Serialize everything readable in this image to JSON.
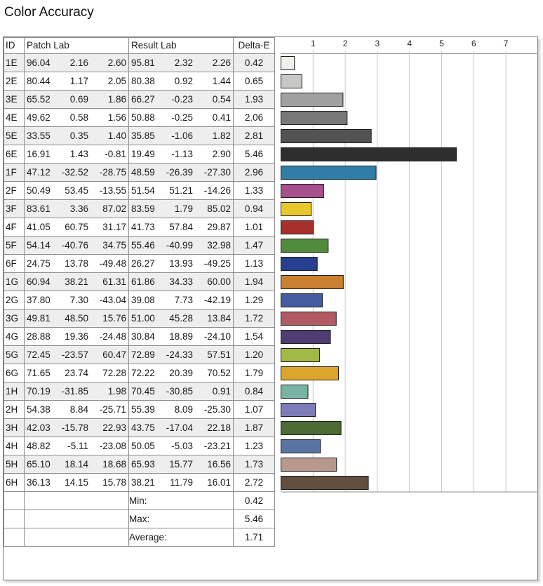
{
  "title": "Color Accuracy",
  "headers": {
    "id": "ID",
    "patch": "Patch Lab",
    "result": "Result Lab",
    "de": "Delta-E"
  },
  "rows": [
    {
      "id": "1E",
      "patch": [
        "96.04",
        "2.16",
        "2.60"
      ],
      "result": [
        "95.81",
        "2.32",
        "2.26"
      ],
      "de": "0.42",
      "color": "#f3f0eb"
    },
    {
      "id": "2E",
      "patch": [
        "80.44",
        "1.17",
        "2.05"
      ],
      "result": [
        "80.38",
        "0.92",
        "1.44"
      ],
      "de": "0.65",
      "color": "#c8c8c6"
    },
    {
      "id": "3E",
      "patch": [
        "65.52",
        "0.69",
        "1.86"
      ],
      "result": [
        "66.27",
        "-0.23",
        "0.54"
      ],
      "de": "1.93",
      "color": "#a0a0a0"
    },
    {
      "id": "4E",
      "patch": [
        "49.62",
        "0.58",
        "1.56"
      ],
      "result": [
        "50.88",
        "-0.25",
        "0.41"
      ],
      "de": "2.06",
      "color": "#787878"
    },
    {
      "id": "5E",
      "patch": [
        "33.55",
        "0.35",
        "1.40"
      ],
      "result": [
        "35.85",
        "-1.06",
        "1.82"
      ],
      "de": "2.81",
      "color": "#535353"
    },
    {
      "id": "6E",
      "patch": [
        "16.91",
        "1.43",
        "-0.81"
      ],
      "result": [
        "19.49",
        "-1.13",
        "2.90"
      ],
      "de": "5.46",
      "color": "#2e2e2e"
    },
    {
      "id": "1F",
      "patch": [
        "47.12",
        "-32.52",
        "-28.75"
      ],
      "result": [
        "48.59",
        "-26.39",
        "-27.30"
      ],
      "de": "2.96",
      "color": "#2f7ea8"
    },
    {
      "id": "2F",
      "patch": [
        "50.49",
        "53.45",
        "-13.55"
      ],
      "result": [
        "51.54",
        "51.21",
        "-14.26"
      ],
      "de": "1.33",
      "color": "#a84f8e"
    },
    {
      "id": "3F",
      "patch": [
        "83.61",
        "3.36",
        "87.02"
      ],
      "result": [
        "83.59",
        "1.79",
        "85.02"
      ],
      "de": "0.94",
      "color": "#e6c82c"
    },
    {
      "id": "4F",
      "patch": [
        "41.05",
        "60.75",
        "31.17"
      ],
      "result": [
        "41.73",
        "57.84",
        "29.87"
      ],
      "de": "1.01",
      "color": "#a8302c"
    },
    {
      "id": "5F",
      "patch": [
        "54.14",
        "-40.76",
        "34.75"
      ],
      "result": [
        "55.46",
        "-40.99",
        "32.98"
      ],
      "de": "1.47",
      "color": "#4f8c3c"
    },
    {
      "id": "6F",
      "patch": [
        "24.75",
        "13.78",
        "-49.48"
      ],
      "result": [
        "26.27",
        "13.93",
        "-49.25"
      ],
      "de": "1.13",
      "color": "#263f8e"
    },
    {
      "id": "1G",
      "patch": [
        "60.94",
        "38.21",
        "61.31"
      ],
      "result": [
        "61.86",
        "34.33",
        "60.00"
      ],
      "de": "1.94",
      "color": "#c98030"
    },
    {
      "id": "2G",
      "patch": [
        "37.80",
        "7.30",
        "-43.04"
      ],
      "result": [
        "39.08",
        "7.73",
        "-42.19"
      ],
      "de": "1.29",
      "color": "#445ca0"
    },
    {
      "id": "3G",
      "patch": [
        "49.81",
        "48.50",
        "15.76"
      ],
      "result": [
        "51.00",
        "45.28",
        "13.84"
      ],
      "de": "1.72",
      "color": "#b25a64"
    },
    {
      "id": "4G",
      "patch": [
        "28.88",
        "19.36",
        "-24.48"
      ],
      "result": [
        "30.84",
        "18.89",
        "-24.10"
      ],
      "de": "1.54",
      "color": "#4f3c70"
    },
    {
      "id": "5G",
      "patch": [
        "72.45",
        "-23.57",
        "60.47"
      ],
      "result": [
        "72.89",
        "-24.33",
        "57.51"
      ],
      "de": "1.20",
      "color": "#a4b848"
    },
    {
      "id": "6G",
      "patch": [
        "71.65",
        "23.74",
        "72.28"
      ],
      "result": [
        "72.22",
        "20.39",
        "70.52"
      ],
      "de": "1.79",
      "color": "#dca52c"
    },
    {
      "id": "1H",
      "patch": [
        "70.19",
        "-31.85",
        "1.98"
      ],
      "result": [
        "70.45",
        "-30.85",
        "0.91"
      ],
      "de": "0.84",
      "color": "#78b4a4"
    },
    {
      "id": "2H",
      "patch": [
        "54.38",
        "8.84",
        "-25.71"
      ],
      "result": [
        "55.39",
        "8.09",
        "-25.30"
      ],
      "de": "1.07",
      "color": "#7c7cb8"
    },
    {
      "id": "3H",
      "patch": [
        "42.03",
        "-15.78",
        "22.93"
      ],
      "result": [
        "43.75",
        "-17.04",
        "22.18"
      ],
      "de": "1.87",
      "color": "#4c6c34"
    },
    {
      "id": "4H",
      "patch": [
        "48.82",
        "-5.11",
        "-23.08"
      ],
      "result": [
        "50.05",
        "-5.03",
        "-23.21"
      ],
      "de": "1.23",
      "color": "#5874a0"
    },
    {
      "id": "5H",
      "patch": [
        "65.10",
        "18.14",
        "18.68"
      ],
      "result": [
        "65.93",
        "15.77",
        "16.56"
      ],
      "de": "1.73",
      "color": "#b8988a"
    },
    {
      "id": "6H",
      "patch": [
        "36.13",
        "14.15",
        "15.78"
      ],
      "result": [
        "38.21",
        "11.79",
        "16.01"
      ],
      "de": "2.72",
      "color": "#644e40"
    }
  ],
  "summary": [
    {
      "label": "Min:",
      "value": "0.42"
    },
    {
      "label": "Max:",
      "value": "5.46"
    },
    {
      "label": "Average:",
      "value": "1.71"
    }
  ],
  "chart_data": {
    "type": "bar",
    "orientation": "horizontal",
    "title": "Color Accuracy",
    "categories": [
      "1E",
      "2E",
      "3E",
      "4E",
      "5E",
      "6E",
      "1F",
      "2F",
      "3F",
      "4F",
      "5F",
      "6F",
      "1G",
      "2G",
      "3G",
      "4G",
      "5G",
      "6G",
      "1H",
      "2H",
      "3H",
      "4H",
      "5H",
      "6H"
    ],
    "values": [
      0.42,
      0.65,
      1.93,
      2.06,
      2.81,
      5.46,
      2.96,
      1.33,
      0.94,
      1.01,
      1.47,
      1.13,
      1.94,
      1.29,
      1.72,
      1.54,
      1.2,
      1.79,
      0.84,
      1.07,
      1.87,
      1.23,
      1.73,
      2.72
    ],
    "ticks": [
      1,
      2,
      3,
      4,
      5,
      6,
      7
    ],
    "xlim": [
      0,
      7.3
    ],
    "grid": true
  }
}
